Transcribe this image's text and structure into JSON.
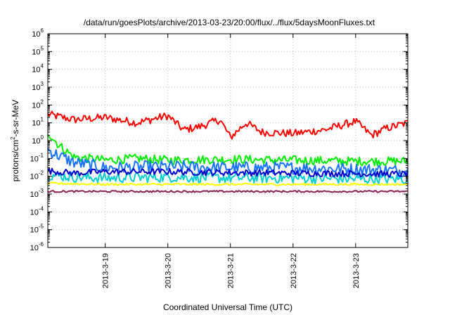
{
  "chart_data": {
    "type": "line",
    "title": "/data/run/goesPlots/archive/2013-03-23/20:00/flux/../flux/5daysMoonFluxes.txt",
    "xlabel": "Coordinated Universal Time (UTC)",
    "ylabel": "protons/cm²-s-sr-MeV",
    "ylabel_parts": {
      "pre": "protons/cm",
      "sup": "2",
      "post": "-s-sr-MeV"
    },
    "x_range": [
      "2013-03-18 02:00",
      "2013-03-23 20:00"
    ],
    "ylim": [
      1e-06,
      1000000.0
    ],
    "y_scale": "log",
    "y_tick_base": "10",
    "y_tick_exponents": [
      "6",
      "5",
      "4",
      "3",
      "2",
      "1",
      "0",
      "-1",
      "-2",
      "-3",
      "-4",
      "-5",
      "-6"
    ],
    "x_tick_labels": [
      "2013-3-19",
      "2013-3-20",
      "2013-3-21",
      "2013-3-22",
      "2013-3-23"
    ],
    "grid": true,
    "legend": "none",
    "series": [
      {
        "color": "#ff0000",
        "x": [
          "2013-03-18 02:00",
          "2013-03-18 12:00",
          "2013-03-19 00:00",
          "2013-03-19 12:00",
          "2013-03-20 00:00",
          "2013-03-20 06:00",
          "2013-03-20 12:00",
          "2013-03-20 20:00",
          "2013-03-21 00:00",
          "2013-03-21 06:00",
          "2013-03-21 12:00",
          "2013-03-22 00:00",
          "2013-03-22 12:00",
          "2013-03-23 00:00",
          "2013-03-23 06:00",
          "2013-03-23 12:00",
          "2013-03-23 20:00"
        ],
        "values": [
          30,
          15,
          20,
          10,
          25,
          4,
          6,
          15,
          1.5,
          10,
          3,
          2.5,
          4,
          12,
          2,
          5,
          10
        ]
      },
      {
        "color": "#00ee00",
        "x": [
          "2013-03-18 02:00",
          "2013-03-18 06:00",
          "2013-03-18 12:00",
          "2013-03-19 00:00",
          "2013-03-19 12:00",
          "2013-03-20 00:00",
          "2013-03-21 00:00",
          "2013-03-22 00:00",
          "2013-03-23 00:00",
          "2013-03-23 20:00"
        ],
        "values": [
          3,
          0.6,
          0.12,
          0.08,
          0.1,
          0.08,
          0.09,
          0.08,
          0.07,
          0.07
        ]
      },
      {
        "color": "#1874ff",
        "x": [
          "2013-03-18 02:00",
          "2013-03-18 06:00",
          "2013-03-18 12:00",
          "2013-03-19 00:00",
          "2013-03-20 00:00",
          "2013-03-21 00:00",
          "2013-03-22 00:00",
          "2013-03-23 00:00",
          "2013-03-23 20:00"
        ],
        "values": [
          0.3,
          0.15,
          0.06,
          0.03,
          0.035,
          0.03,
          0.03,
          0.025,
          0.02
        ]
      },
      {
        "color": "#00ced1",
        "x": [
          "2013-03-18 02:00",
          "2013-03-18 12:00",
          "2013-03-19 00:00",
          "2013-03-20 00:00",
          "2013-03-21 00:00",
          "2013-03-22 00:00",
          "2013-03-23 00:00",
          "2013-03-23 20:00"
        ],
        "values": [
          0.012,
          0.009,
          0.008,
          0.009,
          0.008,
          0.008,
          0.007,
          0.007
        ]
      },
      {
        "color": "#0000cd",
        "x": [
          "2013-03-18 02:00",
          "2013-03-18 12:00",
          "2013-03-19 00:00",
          "2013-03-20 00:00",
          "2013-03-21 00:00",
          "2013-03-22 00:00",
          "2013-03-23 00:00",
          "2013-03-23 20:00"
        ],
        "values": [
          0.02,
          0.015,
          0.018,
          0.018,
          0.016,
          0.015,
          0.014,
          0.013
        ]
      },
      {
        "color": "#ffff00",
        "x": [
          "2013-03-18 02:00",
          "2013-03-19 00:00",
          "2013-03-20 00:00",
          "2013-03-21 00:00",
          "2013-03-22 00:00",
          "2013-03-23 00:00",
          "2013-03-23 20:00"
        ],
        "values": [
          0.004,
          0.0035,
          0.0035,
          0.0035,
          0.0035,
          0.0035,
          0.0035
        ]
      },
      {
        "color": "#8b2252",
        "x": [
          "2013-03-18 02:00",
          "2013-03-19 00:00",
          "2013-03-20 00:00",
          "2013-03-21 00:00",
          "2013-03-22 00:00",
          "2013-03-23 00:00",
          "2013-03-23 20:00"
        ],
        "values": [
          0.0014,
          0.0014,
          0.0014,
          0.0014,
          0.0014,
          0.0014,
          0.0014
        ]
      }
    ]
  }
}
